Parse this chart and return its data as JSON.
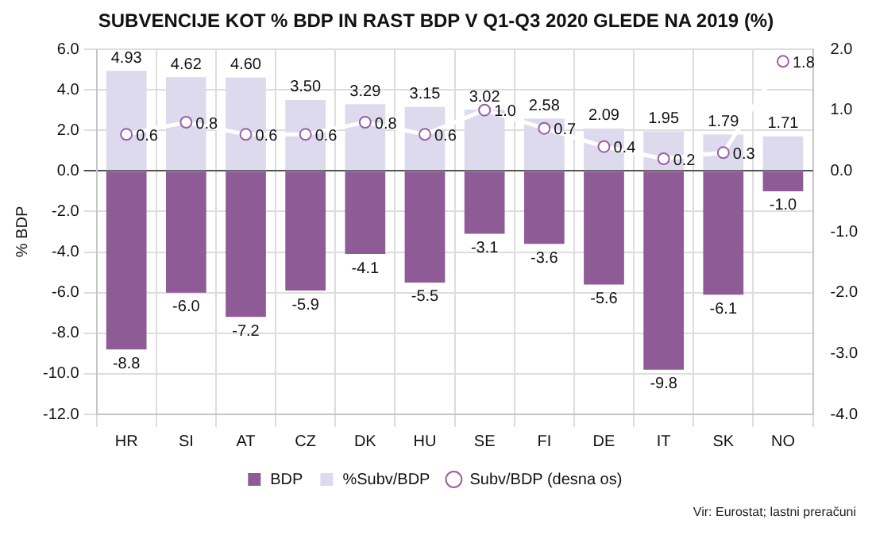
{
  "chart_data": {
    "type": "bar",
    "title": "SUBVENCIJE KOT % BDP IN RAST BDP V Q1-Q3 2020 GLEDE NA 2019 (%)",
    "ylabel": "% BDP",
    "stacked": true,
    "grid": true,
    "legend": "bottom",
    "marker": "circle",
    "categories": [
      "HR",
      "SI",
      "AT",
      "CZ",
      "DK",
      "HU",
      "SE",
      "FI",
      "DE",
      "IT",
      "SK",
      "NO"
    ],
    "series": [
      {
        "name": "BDP",
        "color": "#8f5b97",
        "values": [
          -8.8,
          -6.0,
          -7.2,
          -5.9,
          -4.1,
          -5.5,
          -3.1,
          -3.6,
          -5.6,
          -9.8,
          -6.1,
          -1.0
        ],
        "value_labels": [
          "-8.8",
          "-6.0",
          "-7.2",
          "-5.9",
          "-4.1",
          "-5.5",
          "-3.1",
          "-3.6",
          "-5.6",
          "-9.8",
          "-6.1",
          "-1.0"
        ]
      },
      {
        "name": "%Subv/BDP",
        "color": "#dddaee",
        "values": [
          4.93,
          4.62,
          4.6,
          3.5,
          3.29,
          3.15,
          3.02,
          2.58,
          2.09,
          1.95,
          1.79,
          1.71
        ],
        "value_labels": [
          "4.93",
          "4.62",
          "4.60",
          "3.50",
          "3.29",
          "3.15",
          "3.02",
          "2.58",
          "2.09",
          "1.95",
          "1.79",
          "1.71"
        ]
      },
      {
        "name": "Subv/BDP (desna os)",
        "type": "line",
        "axis": "y2",
        "color": "#9b5fa3",
        "values": [
          0.6,
          0.8,
          0.6,
          0.6,
          0.8,
          0.6,
          1.0,
          0.7,
          0.4,
          0.2,
          0.3,
          1.8
        ],
        "value_labels": [
          "0.6",
          "0.8",
          "0.6",
          "0.6",
          "0.8",
          "0.6",
          "1.0",
          "0.7",
          "0.4",
          "0.2",
          "0.3",
          "1.8"
        ]
      }
    ],
    "ylim": [
      -12,
      6
    ],
    "yticks": [
      {
        "value": -12,
        "label": "-12.0"
      },
      {
        "value": -10,
        "label": "-10.0"
      },
      {
        "value": -8,
        "label": "-8.0"
      },
      {
        "value": -6,
        "label": "-6.0"
      },
      {
        "value": -4,
        "label": "-4.0"
      },
      {
        "value": -2,
        "label": "-2.0"
      },
      {
        "value": 0,
        "label": "0.0"
      },
      {
        "value": 2,
        "label": "2.0"
      },
      {
        "value": 4,
        "label": "4.0"
      },
      {
        "value": 6,
        "label": "6.0"
      }
    ],
    "y2lim": [
      -4,
      2
    ],
    "y2ticks": [
      {
        "value": -4,
        "label": "-4.0"
      },
      {
        "value": -3,
        "label": "-3.0"
      },
      {
        "value": -2,
        "label": "-2.0"
      },
      {
        "value": -1,
        "label": "-1.0"
      },
      {
        "value": 0,
        "label": "0.0"
      },
      {
        "value": 1,
        "label": "1.0"
      },
      {
        "value": 2,
        "label": "2.0"
      }
    ],
    "annotations": [
      "Vir: Eurostat; lastni preračuni"
    ]
  }
}
